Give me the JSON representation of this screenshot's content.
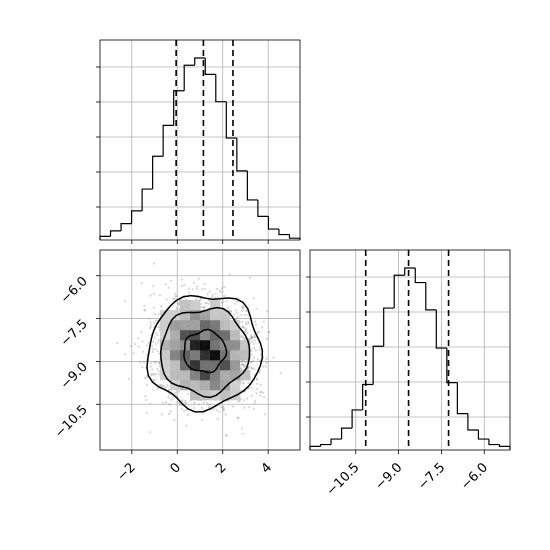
{
  "chart_data": {
    "type": "corner",
    "params": [
      {
        "label": "",
        "range": [
          -3.4,
          5.4
        ],
        "ticks": [
          -2,
          0,
          2,
          4
        ],
        "tick_labels": [
          "−2",
          "0",
          "2",
          "4"
        ],
        "hist_counts": [
          2,
          5,
          9,
          16,
          28,
          46,
          63,
          82,
          96,
          100,
          91,
          76,
          56,
          38,
          22,
          13,
          6,
          3,
          1
        ],
        "quantiles": [
          -0.05,
          1.15,
          2.45
        ]
      },
      {
        "label": "",
        "range": [
          -12.1,
          -5.1
        ],
        "ticks": [
          -10.5,
          -9.0,
          -7.5,
          -6.0
        ],
        "tick_labels": [
          "−10.5",
          "−9.0",
          "−7.5",
          "−6.0"
        ],
        "hist_counts": [
          2,
          3,
          6,
          12,
          22,
          36,
          57,
          78,
          96,
          100,
          92,
          77,
          56,
          37,
          20,
          11,
          6,
          3,
          2
        ],
        "quantiles": [
          -10.15,
          -8.65,
          -7.25
        ]
      }
    ],
    "scatter_2d": {
      "x_param": 0,
      "y_param": 1,
      "center": [
        1.2,
        -8.65
      ],
      "contours": [
        {
          "level": "1-sigma",
          "rx": 0.95,
          "ry": 0.75
        },
        {
          "level": "2-sigma",
          "rx": 2.0,
          "ry": 1.55
        },
        {
          "level": "3-sigma",
          "rx": 2.55,
          "ry": 2.05
        }
      ]
    },
    "grid": true,
    "quantile_style": "dashed"
  }
}
